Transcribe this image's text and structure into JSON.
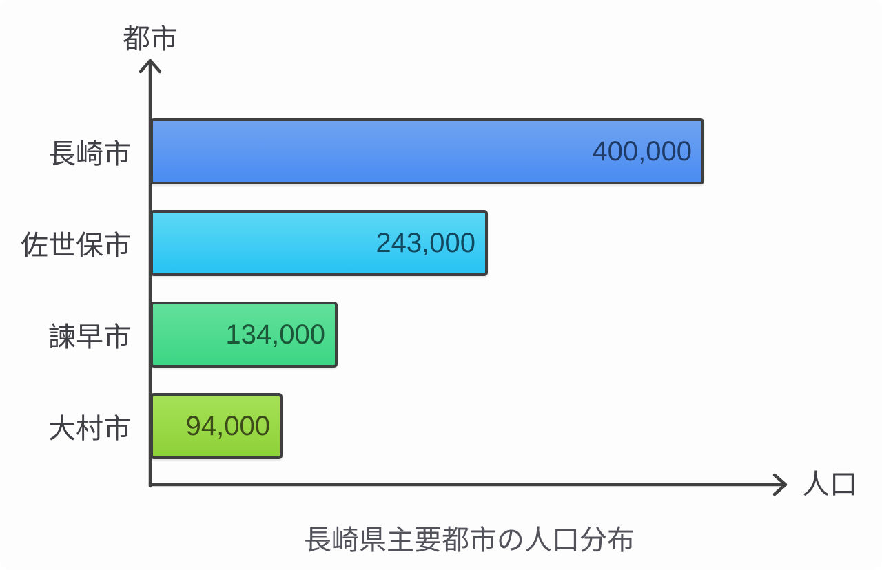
{
  "chart_data": {
    "type": "bar",
    "orientation": "horizontal",
    "title": "長崎県主要都市の人口分布",
    "xlabel": "人口",
    "ylabel": "都市",
    "categories": [
      "長崎市",
      "佐世保市",
      "諫早市",
      "大村市"
    ],
    "values": [
      400000,
      243000,
      134000,
      94000
    ],
    "value_labels": [
      "400,000",
      "243,000",
      "134,000",
      "94,000"
    ],
    "xlim": [
      0,
      465000
    ],
    "grid": false,
    "legend": false,
    "bar_styles": [
      {
        "color_top": "#6fa3f1",
        "color_bottom": "#4a8cf2",
        "text_color": "#1e3a66"
      },
      {
        "color_top": "#5cd8f5",
        "color_bottom": "#27c3f3",
        "text_color": "#12485e"
      },
      {
        "color_top": "#63e09b",
        "color_bottom": "#3cd685",
        "text_color": "#1b5638"
      },
      {
        "color_top": "#a5e156",
        "color_bottom": "#8ed138",
        "text_color": "#3c4a1a"
      }
    ],
    "axis_color": "#404040",
    "label_color": "#3f3f46",
    "title_color": "#52525b",
    "background_color": "#fdfdfd"
  }
}
